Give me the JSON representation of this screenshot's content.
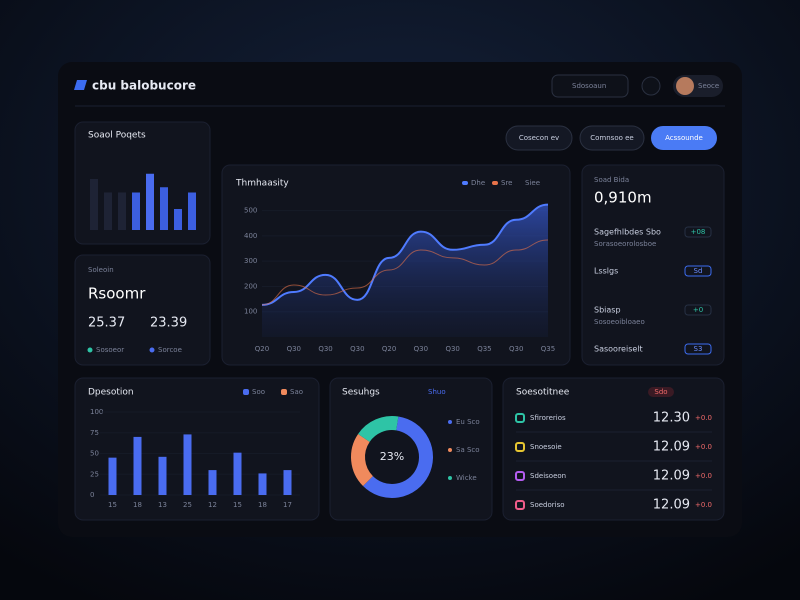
{
  "header": {
    "brand": "cbu balobucore",
    "search": "Sdosoaun",
    "user": "Seoce"
  },
  "buttons": [
    "Cosecon ev",
    "Comnsoo ee",
    "Acssounde"
  ],
  "mini_bars": {
    "type": "bar",
    "title": "Soaol Poqets",
    "values": [
      68,
      50,
      50,
      50,
      75,
      57,
      28,
      50
    ],
    "colors": [
      "#1e2335",
      "#1e2335",
      "#1e2335",
      "#3c5fe0",
      "#4a6cf0",
      "#3c5fe0",
      "#3c5fe0",
      "#3c5fe0"
    ]
  },
  "summary": {
    "title": "Soleoin",
    "heading": "Rsoomr",
    "stats": [
      {
        "value": "25.37",
        "label": "Sosoeor"
      },
      {
        "value": "23.39",
        "label": "Sorcoe"
      }
    ]
  },
  "line": {
    "type": "line",
    "title": "Thmhaasity",
    "note": "Siee",
    "categories": [
      "Q20",
      "Q30",
      "Q30",
      "Q30",
      "Q20",
      "Q30",
      "Q30",
      "Q35",
      "Q30",
      "Q35"
    ],
    "series": [
      {
        "name": "Dhe",
        "color": "#4f7bff",
        "values": [
          127,
          178,
          246,
          147,
          313,
          417,
          345,
          365,
          464,
          524
        ]
      },
      {
        "name": "Sre",
        "color": "#e8734a",
        "values": [
          127,
          206,
          166,
          194,
          265,
          344,
          313,
          285,
          344,
          384
        ]
      }
    ],
    "ylim": [
      0,
      550
    ],
    "yticks": [
      100,
      200,
      300,
      400,
      500
    ],
    "grid": true
  },
  "list": {
    "title": "Soad Bida",
    "total": "0,910m",
    "items": [
      {
        "label": "Sagefhlbdes Sbo",
        "sub": "Sorasoeorolosboe",
        "badge": "+08"
      },
      {
        "label": "Lsslgs",
        "sub": "",
        "badge": "Sd"
      },
      {
        "label": "Sbiasp",
        "sub": "Sosoeoibloaeo",
        "badge": "+0"
      },
      {
        "label": "Sasooreiselt",
        "sub": "",
        "badge": "S3"
      }
    ]
  },
  "bars": {
    "type": "bar",
    "title": "Dpesotion",
    "legend": [
      "Soo",
      "Sao"
    ],
    "color": "#4a6cf0",
    "categories": [
      "15",
      "18",
      "13",
      "25",
      "12",
      "15",
      "18",
      "17"
    ],
    "values": [
      45,
      70,
      46,
      73,
      30,
      51,
      26,
      30
    ],
    "ylim": [
      0,
      100
    ],
    "yticks": [
      0,
      25,
      50,
      75,
      100
    ]
  },
  "donut": {
    "type": "pie",
    "title": "Sesuhgs",
    "note": "Shuo",
    "center": "23%",
    "categories": [
      "Eu Sco",
      "Sa Sco",
      "Wicke"
    ],
    "values": [
      60,
      22,
      18
    ],
    "colors": [
      "#4a6cf0",
      "#f08a5d",
      "#2ec4a6"
    ]
  },
  "table": {
    "title": "Soesotitnee",
    "badge": "Sdo",
    "rows": [
      {
        "name": "Sfirorerios",
        "value": "12.30",
        "delta": "+0.0",
        "color": "#2ec4a6"
      },
      {
        "name": "Snoesoie",
        "value": "12.09",
        "delta": "+0.0",
        "color": "#e6c531"
      },
      {
        "name": "Sdeisoeon",
        "value": "12.09",
        "delta": "+0.0",
        "color": "#b45cf0"
      },
      {
        "name": "Soedoriso",
        "value": "12.09",
        "delta": "+0.0",
        "color": "#f05c8a"
      }
    ]
  }
}
